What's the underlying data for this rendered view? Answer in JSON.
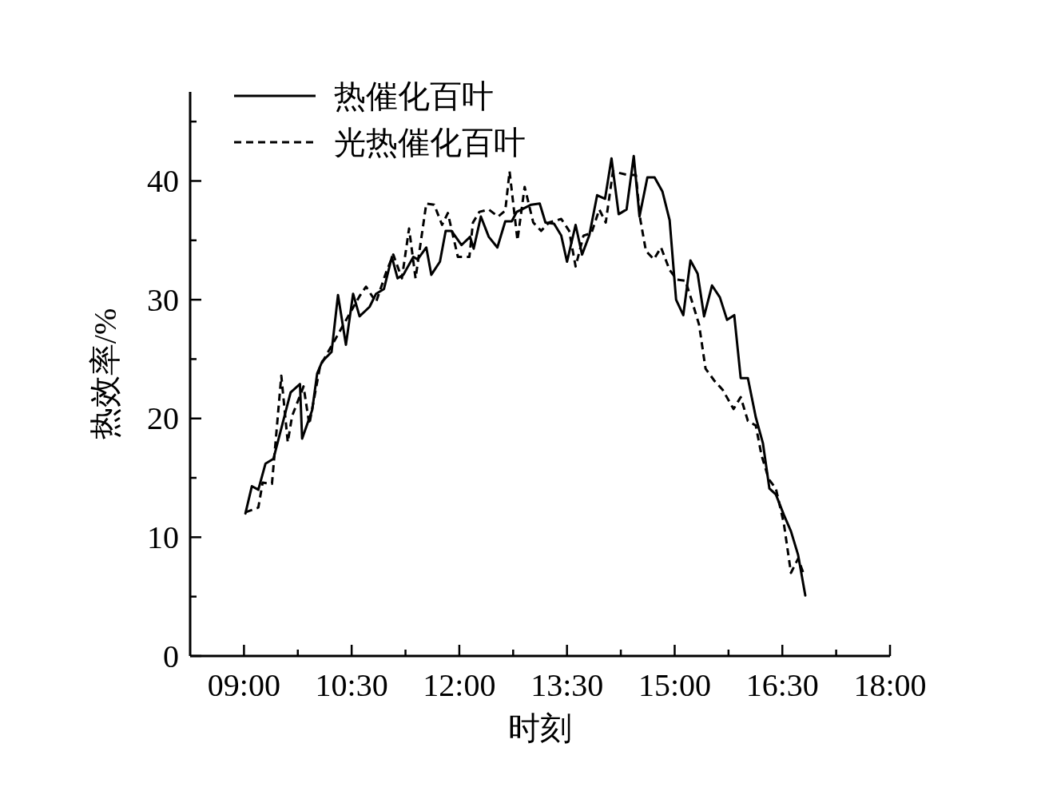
{
  "chart_data": {
    "type": "line",
    "xlabel": "时刻",
    "ylabel": "热效率/%",
    "legend": "top left",
    "xlim": [
      8.25,
      18
    ],
    "ylim": [
      0,
      47.5
    ],
    "xticks": [
      {
        "value": 9,
        "label": "09:00"
      },
      {
        "value": 9.75,
        "label": null
      },
      {
        "value": 10.5,
        "label": "10:30"
      },
      {
        "value": 11.25,
        "label": null
      },
      {
        "value": 12,
        "label": "12:00"
      },
      {
        "value": 12.75,
        "label": null
      },
      {
        "value": 13.5,
        "label": "13:30"
      },
      {
        "value": 14.25,
        "label": null
      },
      {
        "value": 15,
        "label": "15:00"
      },
      {
        "value": 15.75,
        "label": null
      },
      {
        "value": 16.5,
        "label": "16:30"
      },
      {
        "value": 17.25,
        "label": null
      },
      {
        "value": 18,
        "label": "18:00"
      }
    ],
    "yticks": [
      0,
      {
        "value": 5,
        "label": null
      },
      10,
      {
        "value": 15,
        "label": null
      },
      20,
      {
        "value": 25,
        "label": null
      },
      30,
      {
        "value": 35,
        "label": null
      },
      40,
      {
        "value": 45,
        "label": null
      }
    ],
    "series": [
      {
        "name": "热催化百叶",
        "color": "#000000",
        "line_style": "solid",
        "x": [
          9.02,
          9.11,
          9.2,
          9.3,
          9.41,
          9.65,
          9.78,
          9.81,
          9.95,
          10.02,
          10.09,
          10.22,
          10.31,
          10.42,
          10.52,
          10.61,
          10.75,
          10.84,
          10.95,
          11.06,
          11.14,
          11.22,
          11.36,
          11.42,
          11.54,
          11.61,
          11.73,
          11.81,
          11.89,
          12.03,
          12.15,
          12.2,
          12.3,
          12.41,
          12.53,
          12.64,
          12.73,
          12.8,
          12.87,
          13.0,
          13.12,
          13.2,
          13.32,
          13.42,
          13.5,
          13.62,
          13.71,
          13.81,
          13.92,
          14.03,
          14.12,
          14.22,
          14.33,
          14.43,
          14.51,
          14.62,
          14.72,
          14.83,
          14.93,
          15.02,
          15.12,
          15.22,
          15.32,
          15.41,
          15.52,
          15.63,
          15.73,
          15.83,
          15.92,
          16.02,
          16.13,
          16.23,
          16.32,
          16.41,
          16.52,
          16.62,
          16.72,
          16.82
        ],
        "values": [
          12.0,
          14.3,
          14.0,
          16.2,
          16.6,
          22.2,
          22.9,
          18.3,
          20.7,
          23.8,
          24.8,
          25.6,
          30.4,
          26.2,
          30.5,
          28.6,
          29.4,
          30.5,
          30.9,
          33.6,
          31.8,
          32.1,
          33.6,
          33.4,
          34.4,
          32.1,
          33.2,
          35.8,
          35.8,
          34.6,
          35.3,
          34.3,
          37.0,
          35.3,
          34.4,
          36.6,
          36.6,
          37.4,
          37.6,
          38.0,
          38.1,
          36.5,
          36.4,
          35.4,
          33.2,
          36.3,
          33.8,
          35.4,
          38.8,
          38.5,
          41.9,
          37.2,
          37.6,
          42.1,
          37.0,
          40.3,
          40.3,
          39.1,
          36.7,
          30.0,
          28.7,
          33.3,
          32.2,
          28.6,
          31.2,
          30.2,
          28.3,
          28.7,
          23.4,
          23.4,
          20.1,
          17.9,
          14.1,
          13.6,
          11.9,
          10.5,
          8.5,
          5.1
        ]
      },
      {
        "name": "光热催化百叶",
        "color": "#000000",
        "line_style": "dashed",
        "x": [
          9.02,
          9.2,
          9.26,
          9.39,
          9.52,
          9.61,
          9.67,
          9.83,
          9.91,
          10.06,
          10.61,
          10.7,
          10.84,
          10.98,
          11.08,
          11.2,
          11.3,
          11.39,
          11.54,
          11.65,
          11.76,
          11.84,
          11.98,
          12.14,
          12.19,
          12.28,
          12.41,
          12.54,
          12.64,
          12.7,
          12.81,
          12.91,
          13.03,
          13.14,
          13.25,
          13.42,
          13.53,
          13.62,
          13.73,
          13.84,
          13.95,
          14.04,
          14.14,
          14.35,
          14.46,
          14.52,
          14.6,
          14.71,
          14.81,
          14.93,
          15.03,
          15.15,
          15.26,
          15.34,
          15.43,
          15.55,
          15.67,
          15.82,
          15.92,
          16.02,
          16.13,
          16.21,
          16.31,
          16.41,
          16.52,
          16.62,
          16.72,
          16.81
        ],
        "values": [
          12.1,
          12.5,
          14.6,
          14.5,
          23.6,
          18.0,
          20.2,
          22.7,
          19.5,
          24.4,
          30.3,
          31.1,
          29.8,
          32.3,
          33.8,
          31.8,
          36.0,
          31.8,
          38.1,
          38.0,
          36.3,
          37.3,
          33.6,
          33.6,
          36.5,
          37.4,
          37.6,
          37.0,
          37.5,
          40.8,
          35.0,
          39.5,
          36.5,
          35.8,
          36.5,
          36.8,
          35.8,
          32.8,
          35.4,
          35.6,
          37.6,
          36.5,
          40.8,
          40.5,
          40.5,
          36.8,
          34.1,
          33.4,
          34.4,
          32.5,
          31.7,
          31.6,
          29.5,
          27.9,
          24.2,
          23.2,
          22.4,
          20.8,
          21.8,
          19.8,
          19.4,
          16.9,
          14.9,
          14.1,
          11.2,
          7.0,
          8.2,
          6.7
        ]
      }
    ]
  }
}
